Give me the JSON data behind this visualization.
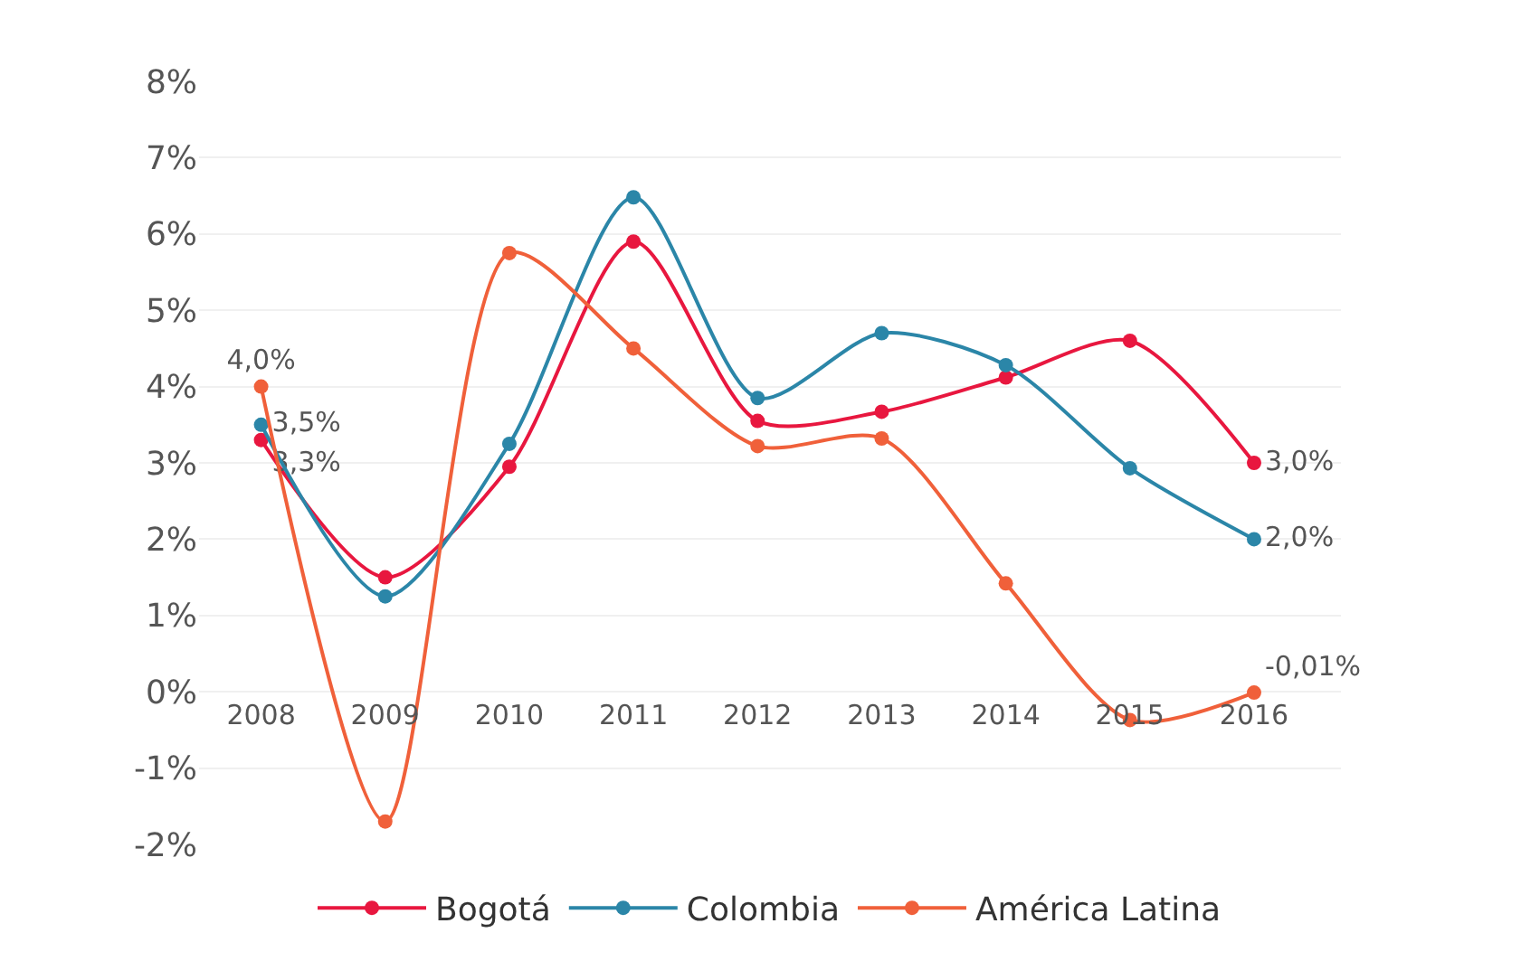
{
  "chart_data": {
    "type": "line",
    "categories": [
      "2008",
      "2009",
      "2010",
      "2011",
      "2012",
      "2013",
      "2014",
      "2015",
      "2016"
    ],
    "series": [
      {
        "name": "Bogotá",
        "color": "#e8173f",
        "values": [
          3.3,
          1.5,
          2.95,
          5.9,
          3.55,
          3.67,
          4.12,
          4.6,
          3.0
        ],
        "value_labels": [
          "3,3%",
          null,
          null,
          null,
          null,
          null,
          null,
          null,
          "3,0%"
        ]
      },
      {
        "name": "Colombia",
        "color": "#2b86a8",
        "values": [
          3.5,
          1.25,
          3.25,
          6.48,
          3.85,
          4.7,
          4.28,
          2.93,
          2.0
        ],
        "value_labels": [
          "3,5%",
          null,
          null,
          null,
          null,
          null,
          null,
          null,
          "2,0%"
        ]
      },
      {
        "name": "América Latina",
        "color": "#f0603a",
        "values": [
          4.0,
          -1.7,
          5.75,
          4.5,
          3.22,
          3.32,
          1.42,
          -0.37,
          -0.01
        ],
        "value_labels": [
          "4,0%",
          null,
          null,
          null,
          null,
          null,
          null,
          null,
          "-0,01%"
        ]
      }
    ],
    "ylim": [
      -2,
      8
    ],
    "yticks": [
      {
        "value": -2,
        "label": "-2%"
      },
      {
        "value": -1,
        "label": "-1%"
      },
      {
        "value": 0,
        "label": "0%"
      },
      {
        "value": 1,
        "label": "1%"
      },
      {
        "value": 2,
        "label": "2%"
      },
      {
        "value": 3,
        "label": "3%"
      },
      {
        "value": 4,
        "label": "4%"
      },
      {
        "value": 5,
        "label": "5%"
      },
      {
        "value": 6,
        "label": "6%"
      },
      {
        "value": 7,
        "label": "7%"
      },
      {
        "value": 8,
        "label": "8%"
      }
    ],
    "grid": "y",
    "legend": "bottom",
    "marker": "circle",
    "line_style": "solid"
  }
}
